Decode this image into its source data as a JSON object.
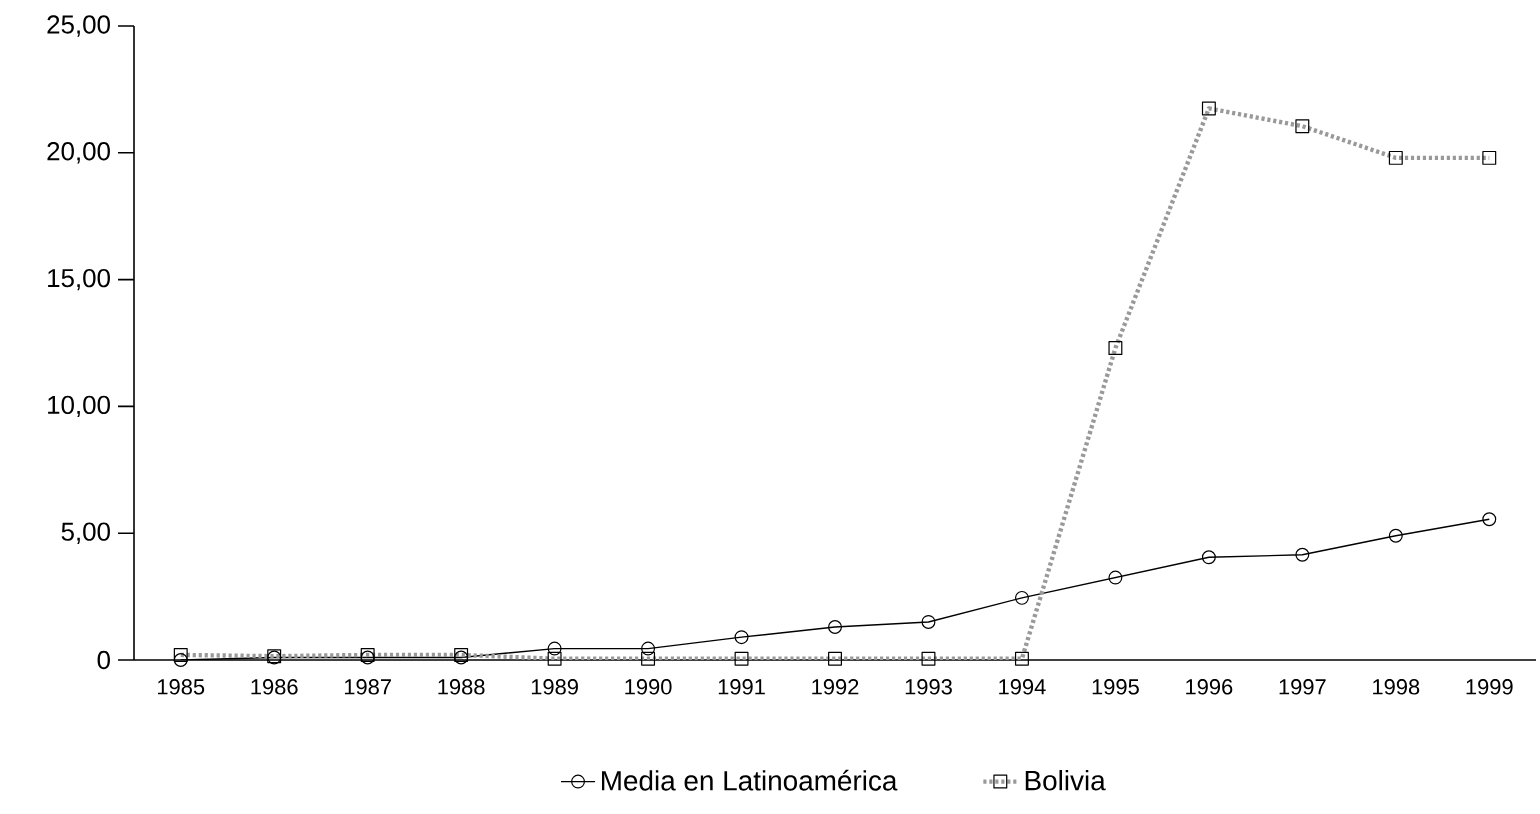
{
  "chart_data": {
    "type": "line",
    "categories": [
      "1985",
      "1986",
      "1987",
      "1988",
      "1989",
      "1990",
      "1991",
      "1992",
      "1993",
      "1994",
      "1995",
      "1996",
      "1997",
      "1998",
      "1999"
    ],
    "series": [
      {
        "name": "Media en Latinoamérica",
        "color": "#000000",
        "marker": "circle",
        "line_style": "solid",
        "values": [
          0,
          0.1,
          0.1,
          0.1,
          0.45,
          0.45,
          0.9,
          1.3,
          1.5,
          2.45,
          3.25,
          4.05,
          4.15,
          4.9,
          5.55
        ]
      },
      {
        "name": "Bolivia",
        "color": "#999999",
        "marker": "square",
        "line_style": "dotted",
        "values": [
          0.2,
          0.15,
          0.2,
          0.2,
          0.05,
          0.05,
          0.05,
          0.05,
          0.05,
          0.05,
          12.3,
          21.75,
          21.05,
          19.8,
          19.8
        ]
      }
    ],
    "ylim": [
      0,
      25
    ],
    "yticks": [
      {
        "value": 0,
        "label": "0"
      },
      {
        "value": 5,
        "label": "5,00"
      },
      {
        "value": 10,
        "label": "10,00"
      },
      {
        "value": 15,
        "label": "15,00"
      },
      {
        "value": 20,
        "label": "20,00"
      },
      {
        "value": 25,
        "label": "25,00"
      }
    ],
    "legend": "bottom",
    "grid": false
  }
}
